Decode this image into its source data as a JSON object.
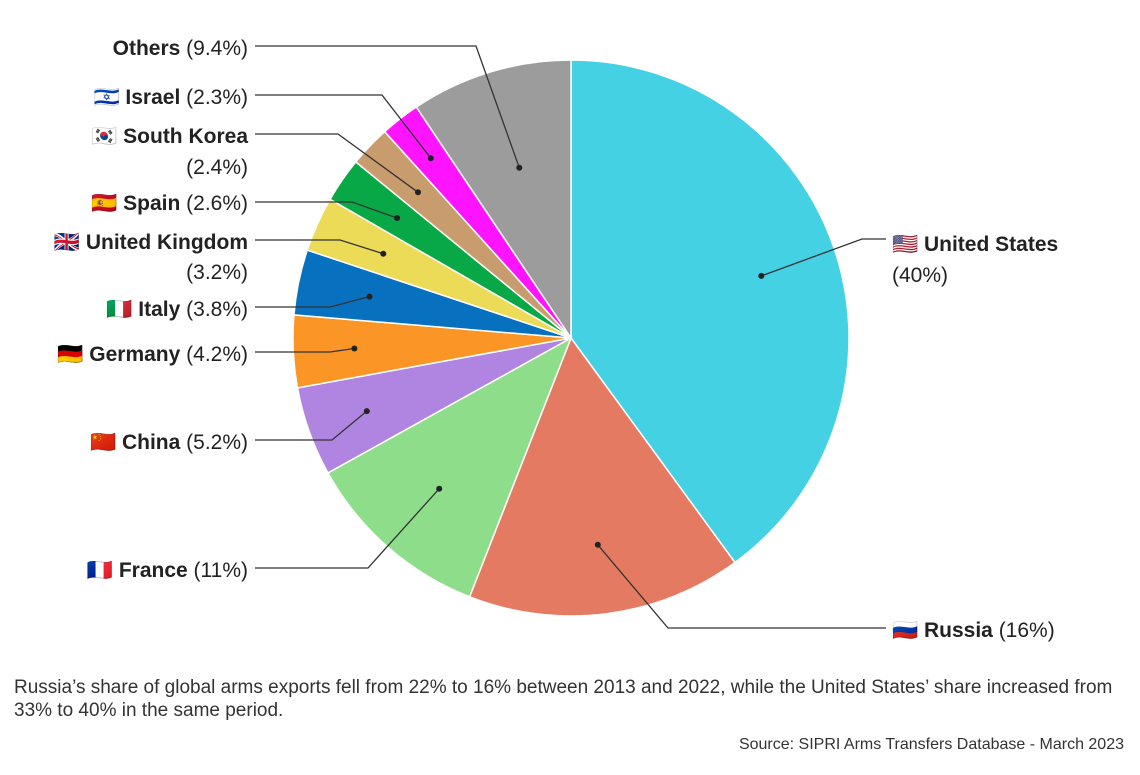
{
  "chart_data": {
    "type": "pie",
    "slices": [
      {
        "name": "United States",
        "label": "🇺🇸 United States",
        "pct": "(40%)",
        "value": 40,
        "color": "#44d1e3"
      },
      {
        "name": "Russia",
        "label": "🇷🇺 Russia",
        "pct": "(16%)",
        "value": 16,
        "color": "#e57a62"
      },
      {
        "name": "France",
        "label": "🇫🇷 France",
        "pct": "(11%)",
        "value": 11,
        "color": "#8edd8a"
      },
      {
        "name": "China",
        "label": "🇨🇳 China",
        "pct": "(5.2%)",
        "value": 5.2,
        "color": "#b085e2"
      },
      {
        "name": "Germany",
        "label": "🇩🇪 Germany",
        "pct": "(4.2%)",
        "value": 4.2,
        "color": "#fb9526"
      },
      {
        "name": "Italy",
        "label": "🇮🇹 Italy",
        "pct": "(3.8%)",
        "value": 3.8,
        "color": "#0770bf"
      },
      {
        "name": "United Kingdom",
        "label": "🇬🇧 United Kingdom",
        "pct": "(3.2%)",
        "value": 3.2,
        "color": "#ecdb56"
      },
      {
        "name": "Spain",
        "label": "🇪🇸 Spain",
        "pct": "(2.6%)",
        "value": 2.6,
        "color": "#07a845"
      },
      {
        "name": "South Korea",
        "label": "🇰🇷 South Korea",
        "pct": "(2.4%)",
        "value": 2.4,
        "color": "#c99c6e"
      },
      {
        "name": "Israel",
        "label": "🇮🇱 Israel",
        "pct": "(2.3%)",
        "value": 2.3,
        "color": "#ff14ff"
      },
      {
        "name": "Others",
        "label": "Others",
        "pct": "(9.4%)",
        "value": 9.4,
        "color": "#9c9c9c"
      }
    ]
  },
  "caption": "Russia’s share of global arms exports fell from 22% to 16% between 2013 and 2022, while the United States’ share increased from 33% to 40% in the same period.",
  "source": "Source: SIPRI Arms Transfers Database - March 2023"
}
